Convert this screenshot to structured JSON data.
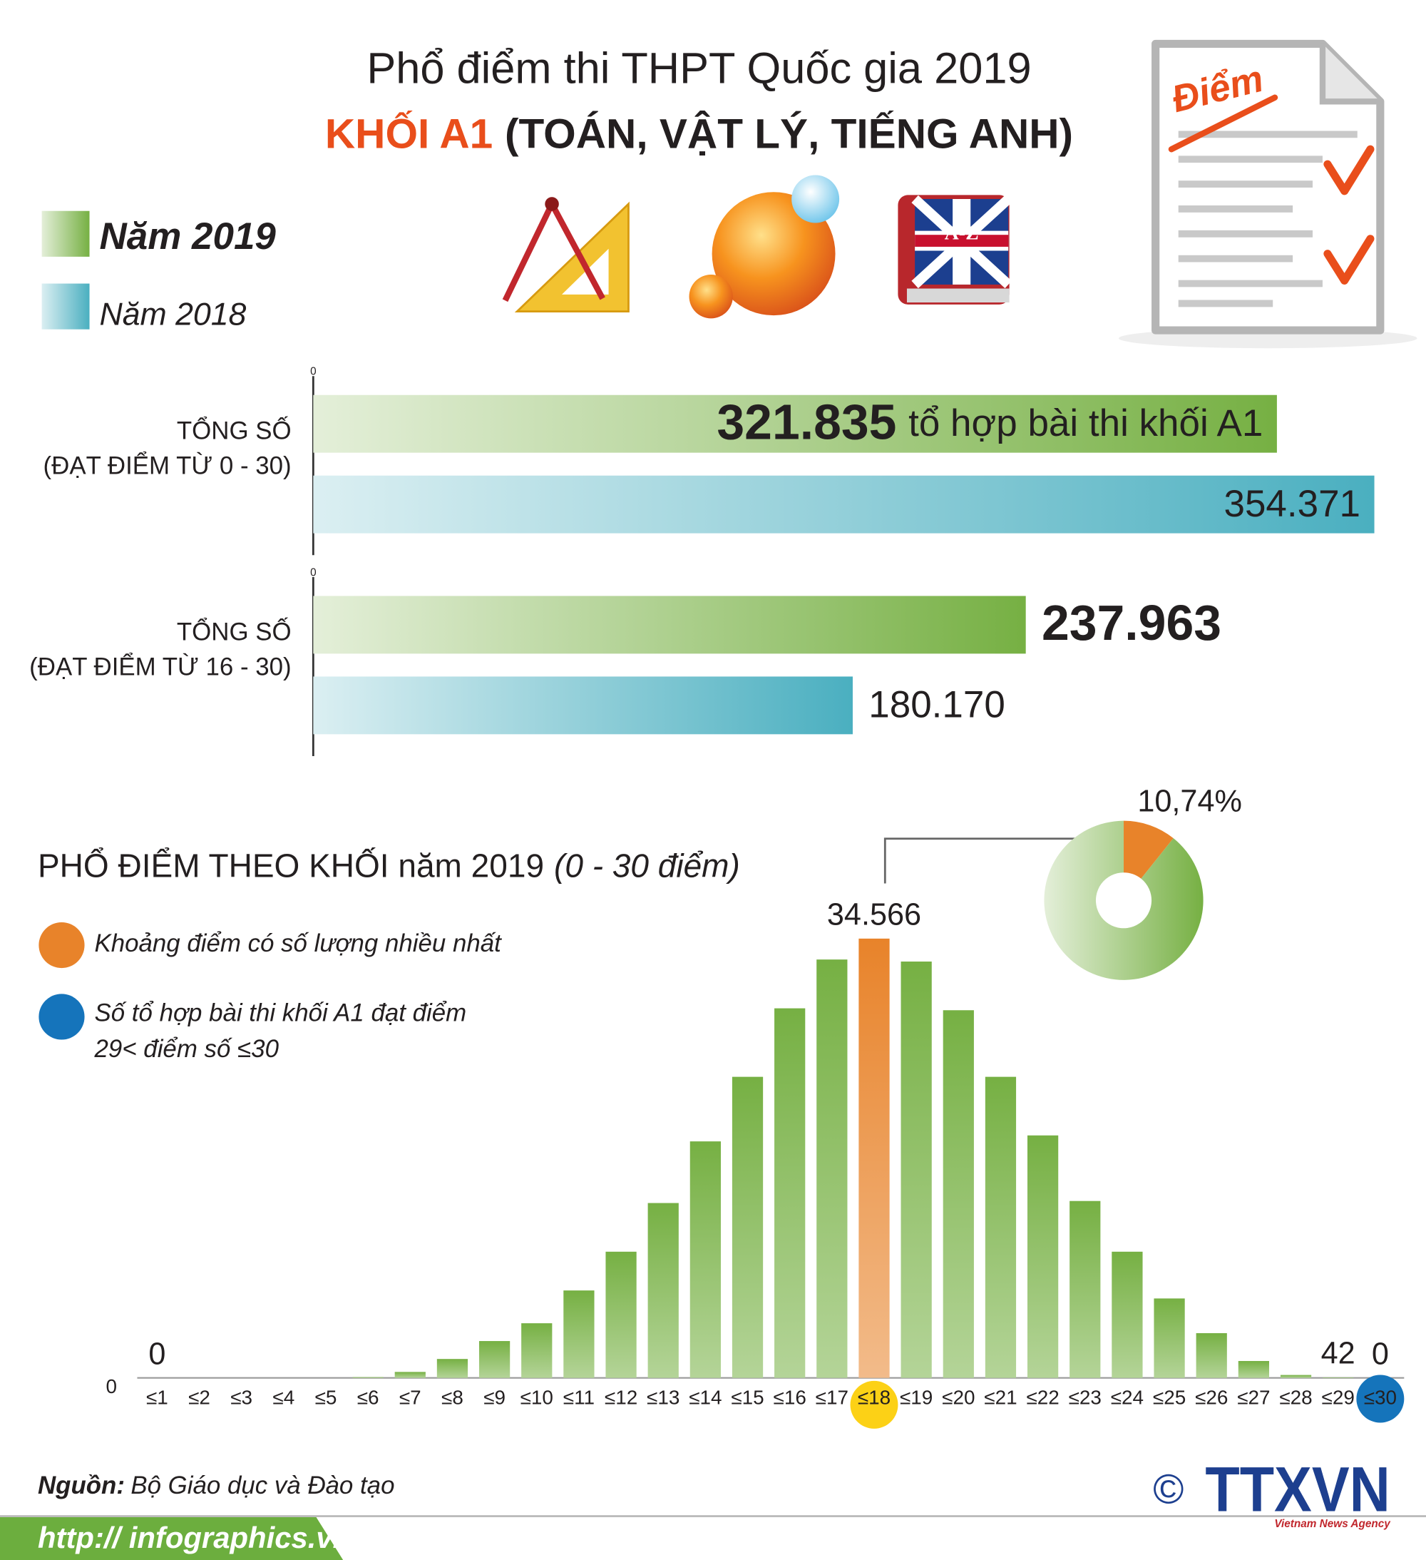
{
  "header": {
    "title": "Phổ điểm thi THPT Quốc gia 2019",
    "subtitle_highlight": "KHỐI A1",
    "subtitle": "(TOÁN, VẬT LÝ, TIẾNG ANH)"
  },
  "icons": {
    "note": "Điểm",
    "book": "A-Z"
  },
  "chart_data": [
    {
      "type": "hbar",
      "categories": [
        "TỔNG SỐ\n(ĐẠT ĐIỂM TỪ 0 - 30)",
        "TỔNG SỐ\n(ĐẠT ĐIỂM TỪ 16 - 30)"
      ],
      "series": [
        {
          "name": "Năm 2019",
          "color": "#76b043",
          "values": [
            321835,
            237963
          ],
          "value_labels": [
            "321.835",
            "237.963"
          ]
        },
        {
          "name": "Năm 2018",
          "color": "#4aafc0",
          "values": [
            354371,
            180170
          ],
          "value_labels": [
            "354.371",
            "180.170"
          ]
        }
      ],
      "annotation": "tổ hợp bài thi khối A1",
      "xlim": [
        0,
        360000
      ],
      "xticks": [
        0
      ]
    },
    {
      "type": "bar",
      "title": "PHỔ ĐIỂM THEO KHỐI năm 2019",
      "subtitle": "(0 - 30 điểm)",
      "categories": [
        "≤1",
        "≤2",
        "≤3",
        "≤4",
        "≤5",
        "≤6",
        "≤7",
        "≤8",
        "≤9",
        "≤10",
        "≤11",
        "≤12",
        "≤13",
        "≤14",
        "≤15",
        "≤16",
        "≤17",
        "≤18",
        "≤19",
        "≤20",
        "≤21",
        "≤22",
        "≤23",
        "≤24",
        "≤25",
        "≤26",
        "≤27",
        "≤28",
        "≤29",
        "≤30"
      ],
      "values": [
        0,
        0,
        0,
        0,
        0,
        60,
        470,
        1490,
        2900,
        4300,
        6880,
        9930,
        13760,
        18610,
        23690,
        29080,
        32920,
        34566,
        32760,
        28930,
        23690,
        19080,
        13920,
        9930,
        6250,
        3520,
        1330,
        230,
        42,
        0
      ],
      "value_labels": [
        "0",
        null,
        null,
        null,
        null,
        null,
        null,
        null,
        null,
        null,
        null,
        null,
        null,
        null,
        null,
        null,
        null,
        "34.566",
        null,
        null,
        null,
        null,
        null,
        null,
        null,
        null,
        null,
        null,
        "42",
        "0"
      ],
      "colors": [
        "#76b043",
        "#76b043",
        "#76b043",
        "#76b043",
        "#76b043",
        "#76b043",
        "#76b043",
        "#76b043",
        "#76b043",
        "#76b043",
        "#76b043",
        "#76b043",
        "#76b043",
        "#76b043",
        "#76b043",
        "#76b043",
        "#76b043",
        "#e8832a",
        "#76b043",
        "#76b043",
        "#76b043",
        "#76b043",
        "#76b043",
        "#76b043",
        "#76b043",
        "#76b043",
        "#76b043",
        "#76b043",
        "#76b043",
        "#76b043"
      ],
      "ylim": [
        0,
        40000
      ],
      "yticks": [
        0
      ],
      "legend": [
        {
          "label": "Khoảng điểm có số lượng nhiều nhất",
          "color": "#e8832a"
        },
        {
          "label": "Số tổ hợp bài thi khối A1 đạt điểm\n29< điểm số ≤30",
          "color": "#1574bb"
        }
      ]
    },
    {
      "type": "pie",
      "values": [
        10.74,
        89.26
      ],
      "value_labels": [
        "10,74%",
        null
      ],
      "colors": [
        "#e8832a",
        "#76b043"
      ]
    }
  ],
  "footer": {
    "source_label": "Nguồn:",
    "source": "Bộ Giáo dục và Đào tạo",
    "url": "http:// infographics.vn",
    "copyright": "©",
    "logo": "TTXVN",
    "logo_sub": "Vietnam News Agency"
  }
}
